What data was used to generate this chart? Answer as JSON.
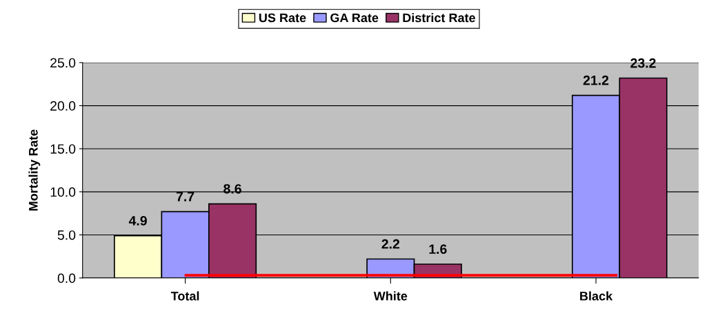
{
  "chart_data": {
    "type": "bar",
    "ylabel": "Mortality Rate",
    "categories": [
      "Total",
      "White",
      "Black"
    ],
    "series": [
      {
        "name": "US Rate",
        "color": "#ffffcc",
        "values": [
          4.9,
          null,
          null
        ]
      },
      {
        "name": "GA Rate",
        "color": "#9999ff",
        "values": [
          7.7,
          2.2,
          21.2
        ]
      },
      {
        "name": "District Rate",
        "color": "#993366",
        "values": [
          8.6,
          1.6,
          23.2
        ]
      }
    ],
    "ylim": [
      0,
      25
    ],
    "yticks": [
      {
        "value": 0,
        "label": "0.0"
      },
      {
        "value": 5,
        "label": "5.0"
      },
      {
        "value": 10,
        "label": "10.0"
      },
      {
        "value": 15,
        "label": "15.0"
      },
      {
        "value": 20,
        "label": "20.0"
      },
      {
        "value": 25,
        "label": "25.0"
      }
    ],
    "grid": "y",
    "legend": "top",
    "data_labels": true,
    "ref_lines": [
      {
        "axis": "y",
        "value": 0.3,
        "color": "#ff0000"
      }
    ]
  }
}
